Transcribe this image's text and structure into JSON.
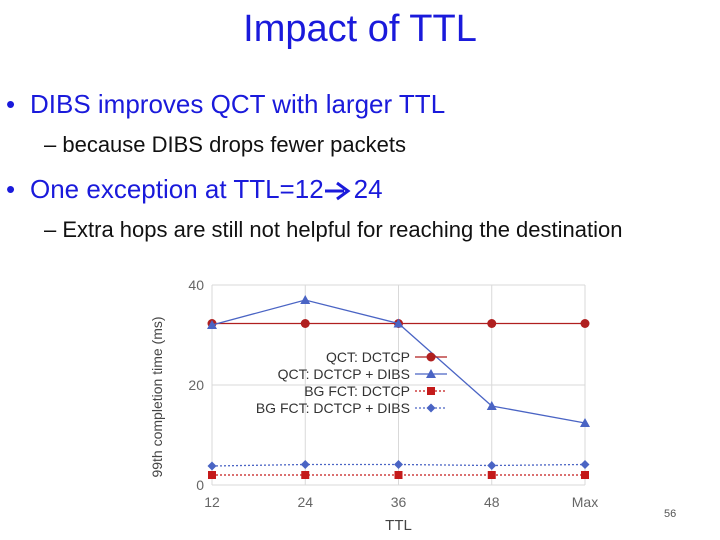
{
  "slide": {
    "title": "Impact of TTL",
    "bullet1": "DIBS improves QCT with larger TTL",
    "sub1": "– because DIBS drops fewer packets",
    "bullet2_pre": "One exception at TTL=12",
    "bullet2_post": "24",
    "sub2": "– Extra hops are still not helpful for reaching the destination",
    "page_number": "56",
    "bullet_char": "•"
  },
  "chart_data": {
    "type": "line",
    "categories": [
      "12",
      "24",
      "36",
      "48",
      "Max"
    ],
    "ylabel": "99th completion time (ms)",
    "xlabel": "TTL",
    "ylim": [
      0,
      40
    ],
    "yticks": [
      "0",
      "20",
      "40"
    ],
    "grid": true,
    "legend_position": "center-right",
    "series": [
      {
        "name": "QCT: DCTCP",
        "values": [
          32.3,
          32.3,
          32.3,
          32.3,
          32.3
        ],
        "color": "#b01f1f",
        "marker": "circle",
        "dash": "solid"
      },
      {
        "name": "QCT: DCTCP + DIBS",
        "values": [
          32.0,
          37.0,
          32.3,
          15.8,
          12.4
        ],
        "color": "#4a64c4",
        "marker": "triangle",
        "dash": "solid"
      },
      {
        "name": "BG FCT: DCTCP",
        "values": [
          2.0,
          2.0,
          2.0,
          2.0,
          2.0
        ],
        "color": "#c41a1a",
        "marker": "square",
        "dash": "dotted"
      },
      {
        "name": "BG FCT: DCTCP + DIBS",
        "values": [
          3.8,
          4.1,
          4.1,
          3.9,
          4.1
        ],
        "color": "#4a64c4",
        "marker": "diamond",
        "dash": "dotted"
      }
    ]
  }
}
